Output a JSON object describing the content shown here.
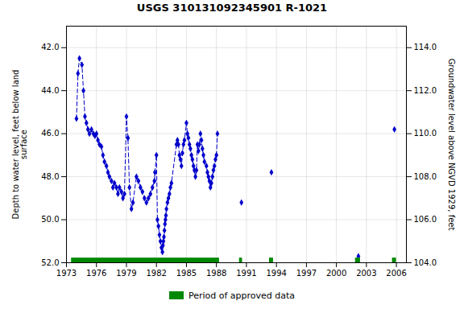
{
  "chart_data": {
    "type": "line",
    "title": "USGS 310131092345901 R-1021",
    "ylabel": "Depth to water level, feet below land\nsurface",
    "y2label": "Groundwater level above NGVD 1929, feet",
    "xlim": [
      1973,
      2007
    ],
    "xticks": [
      1973,
      1976,
      1979,
      1982,
      1985,
      1988,
      1991,
      1994,
      1997,
      2000,
      2003,
      2006
    ],
    "ylim": [
      52.0,
      41.0
    ],
    "yticks": [
      {
        "value": 42.0,
        "label": "42.0"
      },
      {
        "value": 44.0,
        "label": "44.0"
      },
      {
        "value": 46.0,
        "label": "46.0"
      },
      {
        "value": 48.0,
        "label": "48.0"
      },
      {
        "value": 50.0,
        "label": "50.0"
      },
      {
        "value": 52.0,
        "label": "52.0"
      }
    ],
    "y2lim": [
      104.0,
      115.0
    ],
    "y2ticks": [
      {
        "value": 104.0,
        "label": "104.0"
      },
      {
        "value": 106.0,
        "label": "106.0"
      },
      {
        "value": 108.0,
        "label": "108.0"
      },
      {
        "value": 110.0,
        "label": "110.0"
      },
      {
        "value": 112.0,
        "label": "112.0"
      },
      {
        "value": 114.0,
        "label": "114.0"
      }
    ],
    "grid": true,
    "legend": "bottom",
    "series": [
      {
        "type": "line",
        "color": "#0000cc",
        "marker": "diamond",
        "line_style": "dashed",
        "segments": [
          {
            "x": [
              1974.0,
              1974.15,
              1974.3,
              1974.55,
              1974.7,
              1974.85,
              1975.0,
              1975.15,
              1975.3,
              1975.5,
              1975.7,
              1975.85,
              1976.0,
              1976.15,
              1976.3,
              1976.5,
              1976.65,
              1976.8,
              1977.0,
              1977.15,
              1977.3,
              1977.5,
              1977.65,
              1977.8,
              1978.0,
              1978.15,
              1978.3,
              1978.5,
              1978.65,
              1978.8,
              1979.0,
              1979.15,
              1979.3,
              1979.5,
              1979.65,
              1980.0,
              1980.2,
              1980.4,
              1980.6,
              1980.8,
              1981.0,
              1981.2,
              1981.4,
              1981.6,
              1981.8,
              1981.85,
              1982.0,
              1982.1,
              1982.2,
              1982.3,
              1982.4,
              1982.5,
              1982.6,
              1982.65,
              1982.7,
              1982.75,
              1982.8,
              1982.85,
              1982.9,
              1982.95,
              1983.0,
              1983.1,
              1983.2,
              1983.3,
              1983.4,
              1983.5,
              1984.0,
              1984.1,
              1984.2,
              1984.3,
              1984.4,
              1984.5,
              1984.6,
              1984.7,
              1984.8,
              1985.0,
              1985.1,
              1985.2,
              1985.3,
              1985.4,
              1985.5,
              1985.6,
              1985.7,
              1985.8,
              1985.9,
              1986.0,
              1986.1,
              1986.2,
              1986.3,
              1986.4,
              1986.5,
              1986.6,
              1986.7,
              1986.8,
              1987.0,
              1987.1,
              1987.2,
              1987.3,
              1987.4,
              1987.5,
              1987.6,
              1987.7,
              1987.8,
              1987.9,
              1988.0,
              1988.1
            ],
            "values": [
              45.3,
              43.2,
              42.5,
              42.8,
              44.0,
              45.2,
              45.5,
              45.8,
              46.0,
              45.8,
              46.0,
              46.1,
              46.0,
              46.3,
              46.5,
              46.6,
              47.0,
              47.3,
              47.5,
              47.8,
              48.0,
              48.2,
              48.5,
              48.3,
              48.5,
              48.8,
              48.5,
              48.7,
              49.0,
              48.8,
              45.2,
              46.2,
              48.5,
              49.5,
              49.2,
              48.0,
              48.2,
              48.5,
              48.7,
              49.0,
              49.2,
              49.0,
              48.8,
              48.5,
              48.2,
              47.8,
              47.0,
              50.0,
              50.3,
              50.7,
              51.0,
              51.3,
              51.5,
              51.2,
              51.0,
              50.8,
              50.5,
              50.2,
              50.0,
              49.8,
              49.5,
              49.2,
              49.0,
              48.8,
              48.5,
              48.3,
              46.5,
              46.3,
              46.5,
              47.0,
              47.2,
              47.5,
              46.9,
              46.5,
              46.3,
              45.5,
              46.0,
              46.2,
              46.5,
              46.7,
              47.0,
              47.2,
              47.5,
              47.7,
              48.0,
              47.7,
              46.5,
              46.8,
              46.5,
              46.0,
              46.3,
              46.7,
              47.0,
              47.3,
              47.5,
              47.8,
              48.0,
              48.2,
              48.5,
              48.3,
              48.0,
              47.7,
              47.5,
              47.2,
              47.0,
              46.0
            ]
          },
          {
            "x": [
              1990.5
            ],
            "values": [
              49.2
            ]
          },
          {
            "x": [
              1993.5
            ],
            "values": [
              47.8
            ]
          },
          {
            "x": [
              2002.2
            ],
            "values": [
              51.7
            ]
          },
          {
            "x": [
              2005.8
            ],
            "values": [
              45.8
            ]
          }
        ]
      },
      {
        "type": "bar",
        "name": "Period of approved data",
        "color": "#008800",
        "periods": [
          [
            1973.5,
            1988.3
          ],
          [
            1990.3,
            1990.6
          ],
          [
            1993.3,
            1993.7
          ],
          [
            2001.9,
            2002.4
          ],
          [
            2005.6,
            2006.0
          ]
        ]
      }
    ]
  }
}
